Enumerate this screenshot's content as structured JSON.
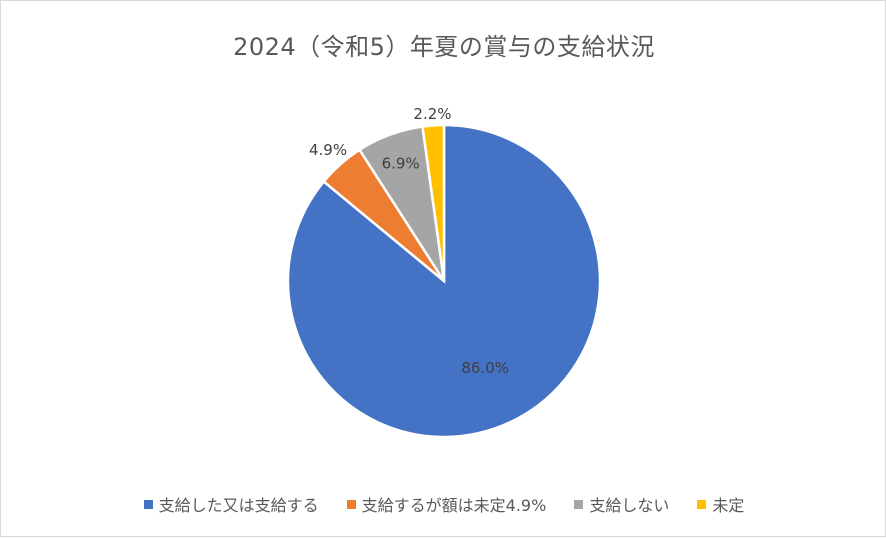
{
  "chart_data": {
    "type": "pie",
    "title": "2024（令和5）年夏の賞与の支給状況",
    "slices": [
      {
        "label": "支給した又は支給する",
        "value": 86.0,
        "value_label": "86.0%",
        "color": "#4472C4"
      },
      {
        "label": "支給するが額は未定4.9%",
        "value": 4.9,
        "value_label": "4.9%",
        "color": "#ED7D31"
      },
      {
        "label": "支給しない",
        "value": 6.9,
        "value_label": "6.9%",
        "color": "#A5A5A5"
      },
      {
        "label": "未定",
        "value": 2.2,
        "value_label": "2.2%",
        "color": "#FFC000"
      }
    ],
    "start_angle_deg": 0,
    "direction": "clockwise",
    "legend_position": "bottom"
  }
}
